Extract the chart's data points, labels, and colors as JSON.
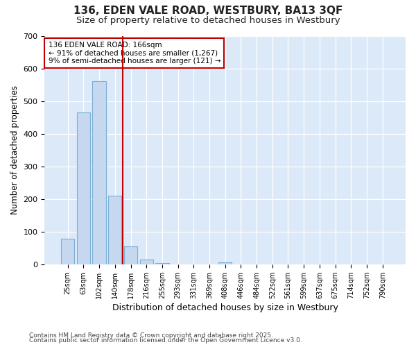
{
  "title_line1": "136, EDEN VALE ROAD, WESTBURY, BA13 3QF",
  "title_line2": "Size of property relative to detached houses in Westbury",
  "xlabel": "Distribution of detached houses by size in Westbury",
  "ylabel": "Number of detached properties",
  "categories": [
    "25sqm",
    "63sqm",
    "102sqm",
    "140sqm",
    "178sqm",
    "216sqm",
    "255sqm",
    "293sqm",
    "331sqm",
    "369sqm",
    "408sqm",
    "446sqm",
    "484sqm",
    "522sqm",
    "561sqm",
    "599sqm",
    "637sqm",
    "675sqm",
    "714sqm",
    "752sqm",
    "790sqm"
  ],
  "values": [
    78,
    465,
    560,
    210,
    55,
    15,
    4,
    0,
    0,
    0,
    5,
    0,
    0,
    0,
    0,
    0,
    0,
    0,
    0,
    0,
    0
  ],
  "bar_color": "#c5d8f0",
  "bar_edge_color": "#7bafd4",
  "fig_background": "#ffffff",
  "plot_background": "#dce9f8",
  "grid_color": "#ffffff",
  "vline_color": "#c00000",
  "vline_x": 3.5,
  "annotation_text": "136 EDEN VALE ROAD: 166sqm\n← 91% of detached houses are smaller (1,267)\n9% of semi-detached houses are larger (121) →",
  "annotation_box_edge": "#c00000",
  "annotation_bg": "#ffffff",
  "ylim": [
    0,
    700
  ],
  "yticks": [
    0,
    100,
    200,
    300,
    400,
    500,
    600,
    700
  ],
  "footnote_line1": "Contains HM Land Registry data © Crown copyright and database right 2025.",
  "footnote_line2": "Contains public sector information licensed under the Open Government Licence v3.0."
}
